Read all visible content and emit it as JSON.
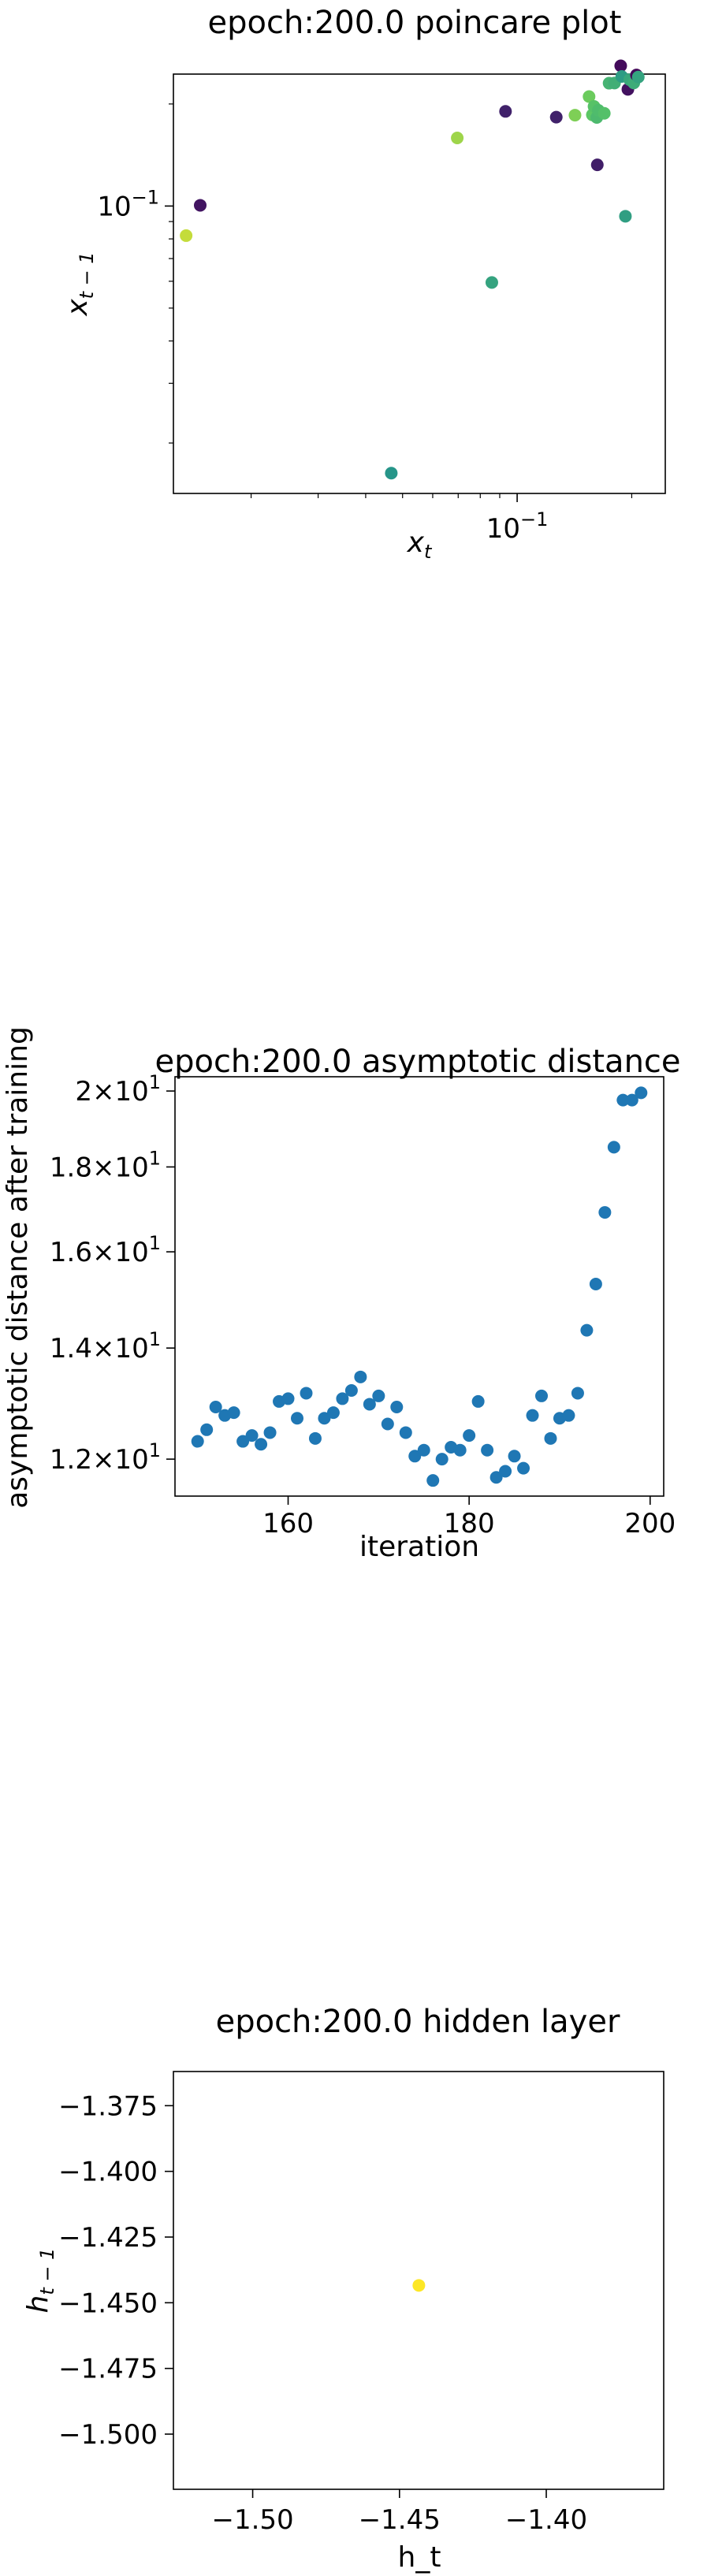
{
  "chart_data": [
    {
      "type": "scatter",
      "title": "epoch:200.0 poincare plot",
      "xlabel": "x_t",
      "ylabel": "x_{t-1}",
      "xscale": "log",
      "yscale": "log",
      "xlim": [
        0.0125,
        0.245
      ],
      "ylim": [
        0.0142,
        0.245
      ],
      "x_ticks": [
        {
          "value": 0.1,
          "base": "10",
          "exp": "−1"
        }
      ],
      "y_ticks": [
        {
          "value": 0.1,
          "base": "10",
          "exp": "−1"
        }
      ],
      "colormap": "viridis",
      "points": [
        {
          "x": 0.0147,
          "y": 0.1005,
          "c": 0.06
        },
        {
          "x": 0.0135,
          "y": 0.0818,
          "c": 0.91
        },
        {
          "x": 0.0467,
          "y": 0.0163,
          "c": 0.52
        },
        {
          "x": 0.0696,
          "y": 0.1588,
          "c": 0.85
        },
        {
          "x": 0.0858,
          "y": 0.0595,
          "c": 0.58
        },
        {
          "x": 0.0932,
          "y": 0.1902,
          "c": 0.1
        },
        {
          "x": 0.1267,
          "y": 0.1829,
          "c": 0.1
        },
        {
          "x": 0.1419,
          "y": 0.1854,
          "c": 0.8
        },
        {
          "x": 0.1545,
          "y": 0.2103,
          "c": 0.77
        },
        {
          "x": 0.1576,
          "y": 0.1858,
          "c": 0.74
        },
        {
          "x": 0.1592,
          "y": 0.1967,
          "c": 0.72
        },
        {
          "x": 0.1619,
          "y": 0.1825,
          "c": 0.68
        },
        {
          "x": 0.1624,
          "y": 0.1323,
          "c": 0.09
        },
        {
          "x": 0.1634,
          "y": 0.1916,
          "c": 0.69
        },
        {
          "x": 0.1694,
          "y": 0.1877,
          "c": 0.71
        },
        {
          "x": 0.1744,
          "y": 0.2303,
          "c": 0.65
        },
        {
          "x": 0.1802,
          "y": 0.2305,
          "c": 0.63
        },
        {
          "x": 0.1871,
          "y": 0.2592,
          "c": 0.03
        },
        {
          "x": 0.1883,
          "y": 0.2411,
          "c": 0.55
        },
        {
          "x": 0.1925,
          "y": 0.0933,
          "c": 0.56
        },
        {
          "x": 0.1954,
          "y": 0.2209,
          "c": 0.05
        },
        {
          "x": 0.1976,
          "y": 0.2359,
          "c": 0.6
        },
        {
          "x": 0.2025,
          "y": 0.2307,
          "c": 0.62
        },
        {
          "x": 0.2058,
          "y": 0.2435,
          "c": 0.02
        },
        {
          "x": 0.2081,
          "y": 0.2401,
          "c": 0.58
        }
      ]
    },
    {
      "type": "scatter",
      "title": "epoch:200.0 asymptotic distance",
      "xlabel": "iteration",
      "ylabel": "asymptotic distance after training",
      "yscale": "log",
      "xlim": [
        147.5,
        201.5
      ],
      "ylim": [
        11.4,
        20.4
      ],
      "x_ticks": [
        160,
        180,
        200
      ],
      "y_ticks": [
        {
          "value": 12,
          "mant": "1.2",
          "base": "10",
          "exp": "1"
        },
        {
          "value": 14,
          "mant": "1.4",
          "base": "10",
          "exp": "1"
        },
        {
          "value": 16,
          "mant": "1.6",
          "base": "10",
          "exp": "1"
        },
        {
          "value": 18,
          "mant": "1.8",
          "base": "10",
          "exp": "1"
        },
        {
          "value": 20,
          "mant": "2",
          "base": "10",
          "exp": "1"
        }
      ],
      "color": "#1f77b4",
      "x": [
        150,
        151,
        152,
        153,
        154,
        155,
        156,
        157,
        158,
        159,
        160,
        161,
        162,
        163,
        164,
        165,
        166,
        167,
        168,
        169,
        170,
        171,
        172,
        173,
        174,
        175,
        176,
        177,
        178,
        179,
        180,
        181,
        182,
        183,
        184,
        185,
        186,
        187,
        188,
        189,
        190,
        191,
        192,
        193,
        194,
        195,
        196,
        197,
        198,
        199
      ],
      "y": [
        12.3,
        12.5,
        12.9,
        12.75,
        12.8,
        12.3,
        12.4,
        12.25,
        12.45,
        13.0,
        13.05,
        12.7,
        13.15,
        12.35,
        12.7,
        12.8,
        13.05,
        13.2,
        13.45,
        12.95,
        13.1,
        12.6,
        12.9,
        12.45,
        12.05,
        12.15,
        11.65,
        12.0,
        12.2,
        12.15,
        12.4,
        13.0,
        12.15,
        11.7,
        11.8,
        12.05,
        11.85,
        12.75,
        13.1,
        12.35,
        12.7,
        12.75,
        13.15,
        14.35,
        15.3,
        16.9,
        18.5,
        19.75,
        19.75,
        19.95
      ]
    },
    {
      "type": "scatter",
      "title": "epoch:200.0 hidden layer",
      "xlabel": "h_t",
      "ylabel": "h_{t-1}",
      "xlim": [
        -1.527,
        -1.36
      ],
      "ylim": [
        -1.521,
        -1.362
      ],
      "x_ticks": [
        -1.5,
        -1.45,
        -1.4
      ],
      "x_tick_labels": [
        "−1.50",
        "−1.45",
        "−1.40"
      ],
      "y_ticks": [
        -1.375,
        -1.4,
        -1.425,
        -1.45,
        -1.475,
        -1.5
      ],
      "y_tick_labels": [
        "−1.375",
        "−1.400",
        "−1.425",
        "−1.450",
        "−1.475",
        "−1.500"
      ],
      "color": "#fde725",
      "x": [
        -1.4434
      ],
      "y": [
        -1.4434
      ]
    }
  ]
}
